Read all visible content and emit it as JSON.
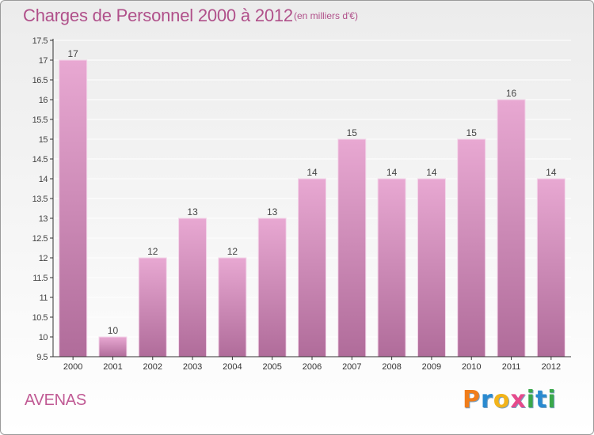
{
  "header": {
    "title": "Charges de Personnel 2000 à 2012",
    "subtitle": "(en milliers d'€)"
  },
  "commune": "AVENAS",
  "logo": {
    "text": "Proxiti",
    "letters": [
      {
        "ch": "P",
        "color": "#f07d1a"
      },
      {
        "ch": "r",
        "color": "#2a8ad0"
      },
      {
        "ch": "o",
        "color": "#f2b41b"
      },
      {
        "ch": "x",
        "color": "#e64a8c"
      },
      {
        "ch": "i",
        "color": "#3aa84a"
      },
      {
        "ch": "t",
        "color": "#2a8ad0"
      },
      {
        "ch": "i",
        "color": "#3aa84a"
      }
    ]
  },
  "colors": {
    "bar_top": "#e8a8d2",
    "bar_bottom": "#b06c9a",
    "text": "#b0508a",
    "axis": "#333333"
  },
  "chart_data": {
    "type": "bar",
    "categories": [
      "2000",
      "2001",
      "2002",
      "2003",
      "2004",
      "2005",
      "2006",
      "2007",
      "2008",
      "2009",
      "2010",
      "2011",
      "2012"
    ],
    "values": [
      17,
      10,
      12,
      13,
      12,
      13,
      14,
      15,
      14,
      14,
      15,
      16,
      14
    ],
    "data_labels": [
      "17",
      "10",
      "12",
      "13",
      "12",
      "13",
      "14",
      "15",
      "14",
      "14",
      "15",
      "16",
      "14"
    ],
    "yticks": [
      9.5,
      10,
      10.5,
      11,
      11.5,
      12,
      12.5,
      13,
      13.5,
      14,
      14.5,
      15,
      15.5,
      16,
      16.5,
      17,
      17.5
    ],
    "ylim": [
      9.5,
      17.5
    ],
    "grid": true
  }
}
